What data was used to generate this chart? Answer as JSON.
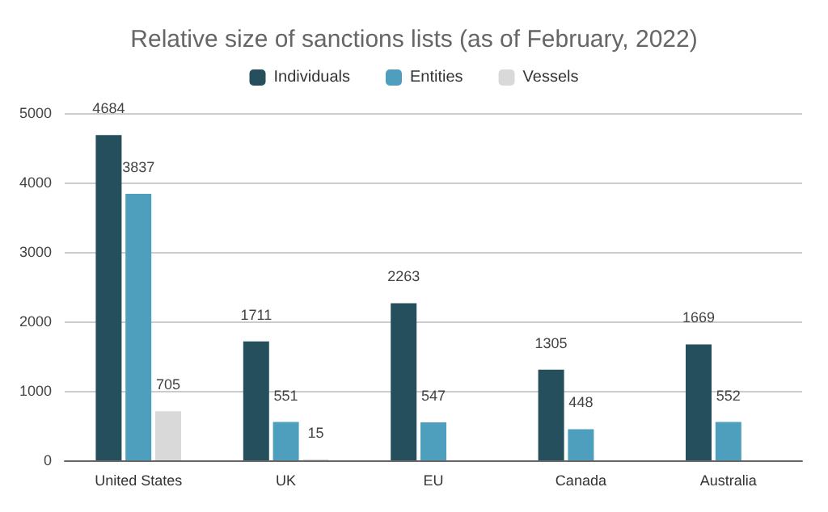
{
  "chart_data": {
    "type": "bar",
    "title": "Relative size of sanctions lists (as of February, 2022)",
    "categories": [
      "United States",
      "UK",
      "EU",
      "Canada",
      "Australia"
    ],
    "series": [
      {
        "name": "Individuals",
        "color": "#264f5e",
        "values": [
          4684,
          1711,
          2263,
          1305,
          1669
        ]
      },
      {
        "name": "Entities",
        "color": "#4e9ebd",
        "values": [
          3837,
          551,
          547,
          448,
          552
        ]
      },
      {
        "name": "Vessels",
        "color": "#d9d9d9",
        "values": [
          705,
          15,
          null,
          null,
          null
        ]
      }
    ],
    "ylim": [
      0,
      5000
    ],
    "yticks": [
      0,
      1000,
      2000,
      3000,
      4000,
      5000
    ],
    "grid": "y",
    "legend": "top",
    "data_labels": true
  }
}
